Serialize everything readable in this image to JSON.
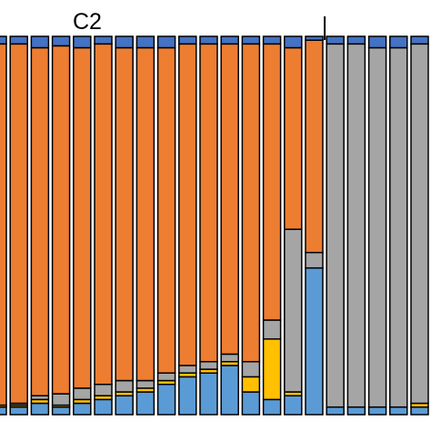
{
  "chart_data": {
    "type": "bar",
    "stacked": true,
    "normalized": true,
    "ylim": [
      0,
      1
    ],
    "title": "",
    "xlabel": "",
    "ylabel": "",
    "annotations": [
      {
        "text": "C2"
      }
    ],
    "divider_after_bar": 15,
    "series": [
      {
        "color": "#5b9bd5",
        "values": [
          0.02,
          0.02,
          0.03,
          0.02,
          0.03,
          0.04,
          0.05,
          0.06,
          0.08,
          0.1,
          0.11,
          0.13,
          0.06,
          0.04,
          0.05,
          0.38,
          0.02,
          0.02,
          0.02,
          0.02,
          0.02,
          0.02
        ]
      },
      {
        "color": "#ffc000",
        "values": [
          0.005,
          0.005,
          0.01,
          0.005,
          0.01,
          0.01,
          0.01,
          0.01,
          0.01,
          0.01,
          0.01,
          0.01,
          0.04,
          0.16,
          0.01,
          0.0,
          0.0,
          0.0,
          0.0,
          0.0,
          0.01,
          0.01
        ]
      },
      {
        "color": "#a5a5a5",
        "values": [
          0.0,
          0.005,
          0.01,
          0.03,
          0.03,
          0.03,
          0.03,
          0.02,
          0.02,
          0.02,
          0.02,
          0.02,
          0.04,
          0.05,
          0.43,
          0.04,
          0.96,
          0.96,
          0.95,
          0.95,
          0.95,
          0.95
        ]
      },
      {
        "color": "#ed7d31",
        "values": [
          0.955,
          0.95,
          0.92,
          0.92,
          0.9,
          0.9,
          0.88,
          0.88,
          0.86,
          0.85,
          0.84,
          0.82,
          0.84,
          0.73,
          0.48,
          0.55,
          0.0,
          0.0,
          0.0,
          0.0,
          0.0,
          0.0
        ]
      },
      {
        "color": "#4472c4",
        "values": [
          0.02,
          0.02,
          0.03,
          0.025,
          0.03,
          0.02,
          0.03,
          0.03,
          0.03,
          0.02,
          0.02,
          0.02,
          0.02,
          0.02,
          0.03,
          0.01,
          0.02,
          0.02,
          0.03,
          0.03,
          0.02,
          0.02
        ]
      }
    ]
  }
}
